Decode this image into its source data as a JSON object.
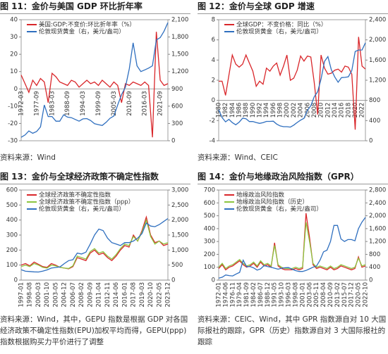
{
  "chart_data": [
    {
      "type": "line",
      "title": "图 11：金价与美国 GDP 环比折年率",
      "source": "资料来源：Wind",
      "categories": [
        "1972-03",
        null,
        null,
        null,
        "1977-09",
        null,
        null,
        null,
        "1983-03",
        null,
        null,
        null,
        "1988-09",
        null,
        null,
        null,
        "1994-03",
        null,
        null,
        null,
        "1999-09",
        null,
        null,
        null,
        "2005-03",
        null,
        null,
        null,
        "2010-09",
        null,
        null,
        null,
        "2016-03",
        null,
        null,
        null,
        "2021-09",
        null,
        null
      ],
      "ylim": [
        -30,
        40
      ],
      "yticks": [
        40,
        30,
        20,
        10,
        0,
        -10,
        -20,
        -30
      ],
      "y2lim": [
        0,
        2100
      ],
      "y2ticks": [
        0,
        300,
        600,
        900,
        {
          "value": 1200,
          "label": "1,200"
        },
        {
          "value": 1500,
          "label": "1,500"
        },
        {
          "value": 1800,
          "label": "1,800"
        },
        {
          "value": 2100,
          "label": "2,100"
        }
      ],
      "legend": "upper left",
      "series": [
        {
          "name": "美国:GDP:不变价:环比折年率（%）",
          "color": "#d9262a",
          "values": [
            8,
            3,
            -2,
            5,
            2,
            6,
            4,
            -8,
            9,
            7,
            4,
            3,
            2,
            5,
            4,
            1,
            3,
            5,
            3,
            4,
            2,
            5,
            3,
            1,
            4,
            2,
            -8,
            3,
            2,
            4,
            3,
            2,
            4,
            2,
            -28,
            33,
            5,
            2,
            3
          ]
        },
        {
          "name": "伦敦现货黄金（右，美元/盎司）",
          "color": "#2f6fbf",
          "axis": "y2",
          "values": [
            60,
            100,
            170,
            130,
            160,
            240,
            620,
            420,
            420,
            340,
            340,
            450,
            410,
            400,
            370,
            340,
            380,
            385,
            350,
            295,
            280,
            265,
            320,
            390,
            430,
            620,
            800,
            930,
            1250,
            1700,
            1300,
            1200,
            1230,
            1260,
            1300,
            1750,
            1790,
            1900,
            2050
          ]
        }
      ]
    },
    {
      "type": "line",
      "title": "图 12：金价与全球 GDP 增速",
      "source": "资料来源：Wind、CEIC",
      "categories": [
        "1980",
        null,
        "1982",
        null,
        "1984",
        null,
        "1986",
        null,
        "1988",
        null,
        "1990",
        null,
        "1992",
        null,
        "1994",
        null,
        "1996",
        null,
        "1998",
        null,
        "2000",
        null,
        "2002",
        null,
        "2004",
        null,
        "2006",
        null,
        "2008",
        null,
        "2010",
        null,
        "2012",
        null,
        "2014",
        null,
        "2016",
        null,
        "2018",
        null,
        "2020",
        null,
        "2022",
        null
      ],
      "ylim": [
        -4,
        8
      ],
      "yticks": [
        8,
        6,
        4,
        2,
        0,
        -2,
        -4
      ],
      "y2lim": [
        0,
        2400
      ],
      "y2ticks": [
        0,
        400,
        800,
        {
          "value": 1200,
          "label": "1,200"
        },
        {
          "value": 1600,
          "label": "1,600"
        },
        {
          "value": 2000,
          "label": "2,000"
        },
        {
          "value": 2400,
          "label": "2,400"
        }
      ],
      "legend": "upper left",
      "series": [
        {
          "name": "全球GDP：不变价格：同比（%）",
          "color": "#d9262a",
          "values": [
            1.9,
            1.9,
            0.5,
            2.5,
            4.5,
            3.6,
            3.3,
            3.6,
            4.5,
            3.7,
            2.9,
            1.4,
            1.9,
            1.6,
            3.2,
            2.9,
            3.4,
            3.7,
            2.5,
            3.4,
            4.5,
            2.0,
            2.2,
            3.0,
            4.4,
            3.9,
            4.4,
            4.3,
            1.8,
            -1.4,
            4.5,
            3.2,
            2.6,
            2.7,
            3.0,
            3.1,
            2.8,
            3.4,
            3.3,
            2.6,
            -2.9,
            6.3,
            3.4,
            3.1
          ]
        },
        {
          "name": "伦敦现货黄金（右，美元/盎司）",
          "color": "#2f6fbf",
          "axis": "y2",
          "values": [
            615,
            460,
            375,
            424,
            360,
            317,
            368,
            447,
            437,
            381,
            383,
            362,
            344,
            360,
            384,
            384,
            388,
            331,
            294,
            279,
            279,
            271,
            310,
            363,
            409,
            445,
            604,
            695,
            872,
            972,
            1225,
            1572,
            1669,
            1411,
            1266,
            1160,
            1251,
            1257,
            1268,
            1393,
            1770,
            1799,
            1800,
            1943
          ]
        }
      ]
    },
    {
      "type": "line",
      "title": "图 13：金价与全球经济政策不确定性指数",
      "source": "资料来源：Wind，其中，GEPU 指数是根据 GDP 对各国经济政策不确定性指数(EPU)加权平均而得，GEPU(ppp)指数根据购买力平价进行了调整",
      "categories": [
        "1997-01",
        null,
        "1998-08",
        null,
        "2000-03",
        null,
        "2001-10",
        null,
        "2003-05",
        null,
        "2004-12",
        null,
        "2006-07",
        null,
        "2008-02",
        null,
        "2009-09",
        null,
        "2011-04",
        null,
        "2012-11",
        null,
        "2014-06",
        null,
        "2016-01",
        null,
        "2017-08",
        null,
        "2019-03",
        null,
        "2020-10",
        null,
        "2022-05",
        null,
        "2023-12"
      ],
      "ylim": [
        0,
        600
      ],
      "yticks": [
        600,
        500,
        400,
        300,
        200,
        100,
        0
      ],
      "y2lim": [
        0,
        3000
      ],
      "y2ticks": [
        0,
        500,
        {
          "value": 1000,
          "label": "1,000"
        },
        {
          "value": 1500,
          "label": "1,500"
        },
        {
          "value": 2000,
          "label": "2,000"
        },
        {
          "value": 2500,
          "label": "2,500"
        },
        {
          "value": 3000,
          "label": "3,000"
        }
      ],
      "legend": "upper left",
      "series": [
        {
          "name": "全球经济政策不确定性指数",
          "color": "#d9262a",
          "values": [
            100,
            110,
            95,
            120,
            105,
            90,
            85,
            110,
            100,
            85,
            80,
            75,
            90,
            150,
            140,
            130,
            180,
            200,
            170,
            180,
            150,
            130,
            160,
            200,
            230,
            220,
            300,
            260,
            330,
            420,
            300,
            250,
            260,
            230,
            240
          ]
        },
        {
          "name": "全球经济政策不确定性指数（ppp）",
          "color": "#8cc63f",
          "values": [
            90,
            100,
            90,
            110,
            100,
            85,
            80,
            100,
            95,
            85,
            80,
            78,
            95,
            160,
            150,
            140,
            190,
            210,
            180,
            190,
            160,
            140,
            170,
            210,
            240,
            230,
            290,
            260,
            320,
            400,
            290,
            240,
            260,
            240,
            250
          ]
        },
        {
          "name": "伦敦现货黄金（右，美元/盎司）",
          "color": "#2f6fbf",
          "axis": "y2",
          "values": [
            345,
            295,
            285,
            275,
            270,
            300,
            340,
            400,
            420,
            440,
            550,
            650,
            680,
            900,
            870,
            930,
            1200,
            1500,
            1700,
            1650,
            1400,
            1250,
            1200,
            1150,
            1250,
            1250,
            1300,
            1400,
            1550,
            1900,
            1800,
            1780,
            1850,
            1950,
            2050
          ]
        }
      ]
    },
    {
      "type": "line",
      "title": "图 14：金价与地缘政治风险指数（GPR）",
      "source": "资料来源：CEIC、Wind，其中 GPR 指数源自对 10 大国际报社的跟踪，GPR（历史）指数源自对 3 大国际报社的跟踪",
      "categories": [
        "1972-01",
        null,
        "1974-06",
        null,
        "1976-11",
        null,
        "1979-04",
        null,
        "1981-09",
        null,
        "1984-02",
        null,
        "1986-07",
        null,
        "1988-12",
        null,
        "1991-05",
        null,
        "1993-10",
        null,
        "1996-03",
        null,
        "1998-08",
        null,
        "2001-01",
        null,
        "2003-06",
        null,
        "2005-11",
        null,
        "2008-04",
        null,
        "2010-09",
        null,
        "2013-02",
        null,
        "2015-07",
        null,
        "2017-12",
        null,
        "2020-05",
        null,
        "2022-10"
      ],
      "ylim": [
        0,
        700
      ],
      "yticks": [
        700,
        600,
        500,
        400,
        300,
        200,
        100,
        0
      ],
      "y2lim": [
        0,
        2800
      ],
      "y2ticks": [
        0,
        400,
        800,
        {
          "value": 1200,
          "label": "1,200"
        },
        {
          "value": 1600,
          "label": "1,600"
        },
        {
          "value": 2000,
          "label": "2,000"
        },
        {
          "value": 2400,
          "label": "2,400"
        },
        {
          "value": 2800,
          "label": "2,800"
        }
      ],
      "legend": "upper left",
      "series": [
        {
          "name": "地缘政治风险指数",
          "color": "#d9262a",
          "values": [
            90,
            120,
            80,
            100,
            110,
            130,
            150,
            120,
            100,
            110,
            130,
            100,
            140,
            110,
            120,
            100,
            290,
            110,
            90,
            80,
            80,
            80,
            90,
            80,
            90,
            520,
            330,
            120,
            90,
            100,
            90,
            80,
            100,
            80,
            90,
            110,
            100,
            90,
            80,
            90,
            180,
            100,
            110
          ]
        },
        {
          "name": "地缘政治风险指数（历史）",
          "color": "#8cc63f",
          "values": [
            100,
            130,
            90,
            110,
            120,
            140,
            160,
            130,
            110,
            120,
            140,
            110,
            150,
            120,
            130,
            110,
            270,
            120,
            100,
            90,
            90,
            90,
            100,
            90,
            100,
            450,
            300,
            130,
            100,
            110,
            100,
            90,
            110,
            90,
            100,
            120,
            110,
            100,
            90,
            100,
            170,
            110,
            120
          ]
        },
        {
          "name": "伦敦现货黄金（右，美元/盎司）",
          "color": "#2f6fbf",
          "axis": "y2",
          "values": [
            60,
            90,
            160,
            140,
            130,
            190,
            240,
            620,
            420,
            420,
            380,
            310,
            350,
            450,
            420,
            400,
            370,
            340,
            370,
            385,
            390,
            340,
            295,
            270,
            270,
            300,
            350,
            400,
            440,
            620,
            880,
            930,
            1200,
            1700,
            1700,
            1280,
            1200,
            1260,
            1260,
            1220,
            1600,
            1800,
            1950
          ]
        }
      ]
    }
  ]
}
